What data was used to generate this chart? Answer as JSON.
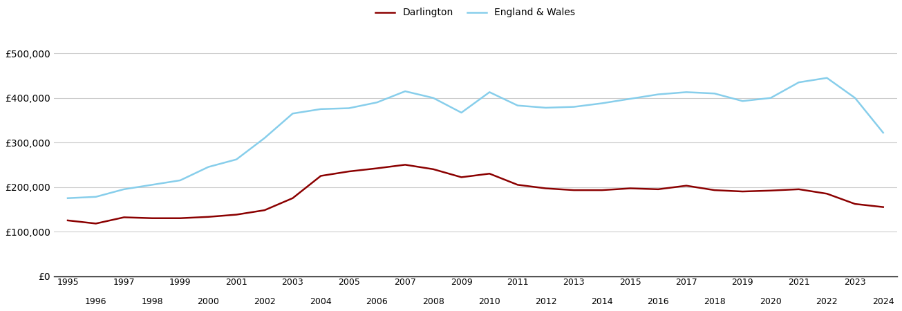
{
  "darlington_years": [
    1995,
    1996,
    1997,
    1998,
    1999,
    2000,
    2001,
    2002,
    2003,
    2004,
    2005,
    2006,
    2007,
    2008,
    2009,
    2010,
    2011,
    2012,
    2013,
    2014,
    2015,
    2016,
    2017,
    2018,
    2019,
    2020,
    2021,
    2022,
    2023,
    2024
  ],
  "darlington_values": [
    125000,
    118000,
    132000,
    130000,
    130000,
    133000,
    138000,
    148000,
    175000,
    225000,
    235000,
    242000,
    250000,
    240000,
    222000,
    230000,
    205000,
    197000,
    193000,
    193000,
    197000,
    195000,
    203000,
    193000,
    190000,
    192000,
    195000,
    185000,
    162000,
    155000
  ],
  "england_years": [
    1995,
    1996,
    1997,
    1998,
    1999,
    2000,
    2001,
    2002,
    2003,
    2004,
    2005,
    2006,
    2007,
    2008,
    2009,
    2010,
    2011,
    2012,
    2013,
    2014,
    2015,
    2016,
    2017,
    2018,
    2019,
    2020,
    2021,
    2022,
    2023,
    2024
  ],
  "england_values": [
    175000,
    178000,
    195000,
    205000,
    215000,
    245000,
    262000,
    310000,
    365000,
    375000,
    377000,
    390000,
    415000,
    400000,
    367000,
    413000,
    383000,
    378000,
    380000,
    388000,
    398000,
    408000,
    413000,
    410000,
    393000,
    400000,
    435000,
    445000,
    400000,
    322000
  ],
  "darlington_color": "#8B0000",
  "england_color": "#87CEEB",
  "darlington_label": "Darlington",
  "england_label": "England & Wales",
  "ylim": [
    0,
    550000
  ],
  "yticks": [
    0,
    100000,
    200000,
    300000,
    400000,
    500000
  ],
  "ytick_labels": [
    "£0",
    "£100,000",
    "£200,000",
    "£300,000",
    "£400,000",
    "£500,000"
  ],
  "background_color": "#ffffff",
  "grid_color": "#cccccc",
  "line_width": 1.8,
  "odd_years": [
    1995,
    1997,
    1999,
    2001,
    2003,
    2005,
    2007,
    2009,
    2011,
    2013,
    2015,
    2017,
    2019,
    2021,
    2023
  ],
  "even_years": [
    1996,
    1998,
    2000,
    2002,
    2004,
    2006,
    2008,
    2010,
    2012,
    2014,
    2016,
    2018,
    2020,
    2022,
    2024
  ]
}
